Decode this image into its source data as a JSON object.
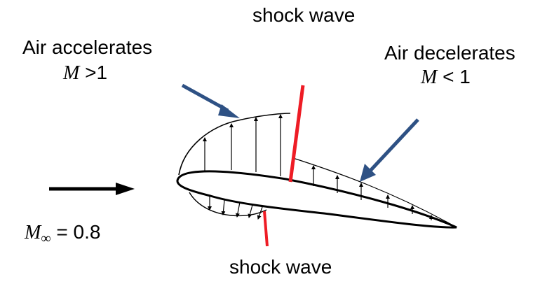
{
  "labels": {
    "shock_wave_top": "shock wave",
    "shock_wave_bottom": "shock wave",
    "air_accelerates": "Air accelerates",
    "mach_greater_symbol": "M",
    "mach_greater_value": " >1",
    "air_decelerates": "Air decelerates",
    "mach_less_symbol": "M",
    "mach_less_value": " < 1",
    "freestream_symbol": "M",
    "freestream_subscript": "∞",
    "freestream_value": " = 0.8"
  },
  "colors": {
    "shock": "#ee1c25",
    "pointer_arrow": "#2e5184",
    "outline": "#000000"
  }
}
